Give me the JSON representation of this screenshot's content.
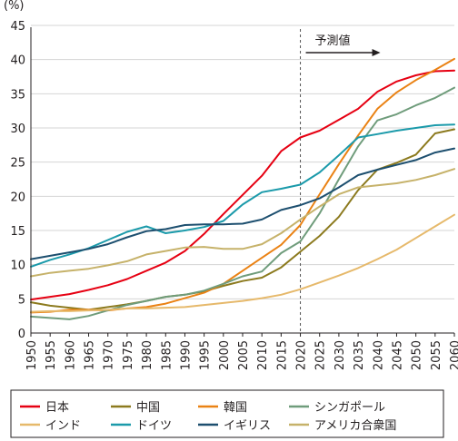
{
  "chart_data": {
    "type": "line",
    "y_unit": "(%)",
    "ylim": [
      0,
      45
    ],
    "y_ticks": [
      0,
      5,
      10,
      15,
      20,
      25,
      30,
      35,
      40,
      45
    ],
    "x": [
      1950,
      1955,
      1960,
      1965,
      1970,
      1975,
      1980,
      1985,
      1990,
      1995,
      2000,
      2005,
      2010,
      2015,
      2020,
      2025,
      2030,
      2035,
      2040,
      2045,
      2050,
      2055,
      2060
    ],
    "forecast_from": 2020,
    "forecast_label": "予測値",
    "grid": "horizontal",
    "legend_position": "bottom",
    "series": [
      {
        "name": "日本",
        "color": "#e60012",
        "values": [
          4.9,
          5.3,
          5.7,
          6.3,
          7.0,
          7.9,
          9.1,
          10.3,
          12.0,
          14.5,
          17.4,
          20.2,
          23.0,
          26.6,
          28.6,
          29.6,
          31.2,
          32.8,
          35.3,
          36.8,
          37.7,
          38.3,
          38.4
        ]
      },
      {
        "name": "中国",
        "color": "#8c7a1e",
        "values": [
          4.5,
          4.0,
          3.7,
          3.4,
          3.8,
          4.2,
          4.7,
          5.3,
          5.6,
          6.1,
          6.9,
          7.6,
          8.1,
          9.6,
          11.9,
          14.2,
          17.0,
          20.9,
          23.9,
          24.9,
          26.1,
          29.2,
          29.8
        ]
      },
      {
        "name": "韓国",
        "color": "#ea8214",
        "values": [
          3.0,
          3.1,
          3.4,
          3.4,
          3.3,
          3.6,
          3.8,
          4.3,
          5.1,
          5.9,
          7.2,
          9.1,
          11.0,
          12.9,
          15.8,
          20.3,
          24.7,
          28.9,
          32.8,
          35.2,
          37.0,
          38.5,
          40.1
        ]
      },
      {
        "name": "シンガポール",
        "color": "#6f9c7b",
        "values": [
          2.4,
          2.2,
          2.0,
          2.5,
          3.3,
          4.1,
          4.7,
          5.3,
          5.6,
          6.2,
          7.2,
          8.3,
          9.0,
          11.7,
          13.4,
          17.5,
          22.5,
          27.3,
          31.1,
          32.0,
          33.3,
          34.4,
          35.9
        ]
      },
      {
        "name": "インド",
        "color": "#e6b96b",
        "values": [
          3.1,
          3.2,
          3.2,
          3.3,
          3.4,
          3.6,
          3.6,
          3.7,
          3.8,
          4.1,
          4.4,
          4.7,
          5.1,
          5.6,
          6.4,
          7.4,
          8.4,
          9.5,
          10.8,
          12.2,
          13.9,
          15.6,
          17.3
        ]
      },
      {
        "name": "ドイツ",
        "color": "#1b9aaa",
        "values": [
          9.7,
          10.7,
          11.5,
          12.4,
          13.6,
          14.8,
          15.6,
          14.6,
          15.0,
          15.5,
          16.4,
          18.8,
          20.6,
          21.1,
          21.7,
          23.5,
          26.0,
          28.6,
          29.1,
          29.6,
          30.0,
          30.4,
          30.5
        ]
      },
      {
        "name": "イギリス",
        "color": "#1d4f6f",
        "values": [
          10.8,
          11.3,
          11.8,
          12.3,
          13.0,
          14.0,
          14.9,
          15.2,
          15.8,
          15.9,
          15.9,
          16.0,
          16.6,
          18.0,
          18.7,
          19.7,
          21.3,
          23.1,
          23.9,
          24.6,
          25.3,
          26.4,
          27.0
        ]
      },
      {
        "name": "アメリカ合衆国",
        "color": "#c6b26a",
        "values": [
          8.3,
          8.8,
          9.1,
          9.4,
          9.9,
          10.5,
          11.5,
          12.0,
          12.5,
          12.6,
          12.3,
          12.3,
          13.0,
          14.6,
          16.6,
          18.5,
          20.3,
          21.3,
          21.6,
          21.9,
          22.4,
          23.1,
          24.0
        ]
      }
    ]
  }
}
